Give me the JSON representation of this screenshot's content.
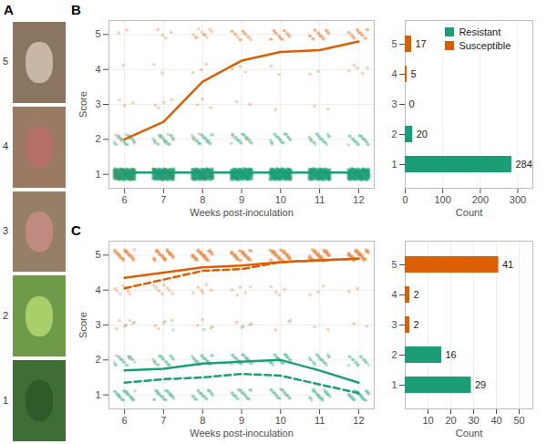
{
  "images": {
    "panel": "A",
    "labels": [
      5,
      4,
      3,
      2,
      1
    ]
  },
  "chart_data": [
    {
      "type": "line",
      "panel": "B",
      "xlabel": "Weeks post-inoculation",
      "ylabel": "Score",
      "x": [
        6,
        7,
        8,
        9,
        10,
        11,
        12
      ],
      "xlim": [
        5.6,
        12.4
      ],
      "xticks": [
        6,
        7,
        8,
        9,
        10,
        11,
        12
      ],
      "ylim": [
        0.6,
        5.4
      ],
      "yticks": [
        1,
        2,
        3,
        4,
        5
      ],
      "grid": true,
      "series": [
        {
          "name": "Susceptible",
          "color": "#d95f02",
          "line_style": "solid",
          "values": [
            2.0,
            2.5,
            3.65,
            4.25,
            4.5,
            4.55,
            4.8
          ]
        },
        {
          "name": "Resistant",
          "color": "#1b9e77",
          "line_style": "solid",
          "values": [
            1.05,
            1.05,
            1.05,
            1.05,
            1.05,
            1.05,
            1.05
          ]
        }
      ],
      "points": {
        "scores": [
          1,
          2,
          3,
          4,
          5
        ],
        "groups": [
          {
            "name": "Resistant",
            "counts": [
              [
                284,
                20,
                0,
                0,
                0
              ],
              [
                284,
                20,
                0,
                0,
                0
              ],
              [
                284,
                20,
                0,
                0,
                0
              ],
              [
                284,
                20,
                0,
                0,
                0
              ],
              [
                284,
                20,
                0,
                0,
                0
              ],
              [
                284,
                20,
                0,
                0,
                0
              ],
              [
                284,
                20,
                0,
                0,
                0
              ]
            ]
          },
          {
            "name": "Susceptible",
            "counts": [
              [
                10,
                6,
                3,
                1,
                2
              ],
              [
                7,
                5,
                4,
                2,
                4
              ],
              [
                3,
                3,
                3,
                3,
                10
              ],
              [
                1,
                2,
                2,
                3,
                14
              ],
              [
                1,
                1,
                1,
                2,
                17
              ],
              [
                0,
                1,
                2,
                2,
                17
              ],
              [
                0,
                0,
                0,
                5,
                17
              ]
            ]
          }
        ]
      }
    },
    {
      "type": "bar",
      "orientation": "horizontal",
      "xlabel": "Count",
      "categories": [
        5,
        4,
        3,
        2,
        1
      ],
      "xlim": [
        0,
        340
      ],
      "xticks": [
        0,
        100,
        200,
        300
      ],
      "grid": true,
      "data_labels": true,
      "legend": "top-right",
      "series": [
        {
          "name": "Resistant",
          "color": "#1b9e77",
          "values": [
            null,
            null,
            null,
            20,
            284
          ]
        },
        {
          "name": "Susceptible",
          "color": "#d95f02",
          "values": [
            17,
            5,
            0,
            null,
            null
          ]
        }
      ]
    },
    {
      "type": "line",
      "panel": "C",
      "xlabel": "Weeks post-inoculation",
      "ylabel": "Score",
      "x": [
        6,
        7,
        8,
        9,
        10,
        11,
        12
      ],
      "xlim": [
        5.6,
        12.4
      ],
      "xticks": [
        6,
        7,
        8,
        9,
        10,
        11,
        12
      ],
      "ylim": [
        0.6,
        5.4
      ],
      "yticks": [
        1,
        2,
        3,
        4,
        5
      ],
      "grid": true,
      "series": [
        {
          "name": "Susceptible",
          "color": "#d95f02",
          "line_style": "solid",
          "values": [
            4.35,
            4.5,
            4.65,
            4.7,
            4.8,
            4.85,
            4.9
          ]
        },
        {
          "name": "Susceptible",
          "color": "#d95f02",
          "line_style": "dashed",
          "values": [
            4.05,
            4.3,
            4.55,
            4.6,
            4.8,
            4.85,
            4.9
          ]
        },
        {
          "name": "Resistant",
          "color": "#1b9e77",
          "line_style": "solid",
          "values": [
            1.7,
            1.75,
            1.9,
            1.95,
            2.0,
            1.7,
            1.35
          ]
        },
        {
          "name": "Resistant",
          "color": "#1b9e77",
          "line_style": "dashed",
          "values": [
            1.35,
            1.45,
            1.5,
            1.6,
            1.55,
            1.3,
            1.05
          ]
        }
      ],
      "points": {
        "scores": [
          1,
          2,
          3,
          4,
          5
        ],
        "groups": [
          {
            "name": "Resistant",
            "counts": [
              [
                25,
                18,
                2,
                0,
                0
              ],
              [
                24,
                19,
                2,
                0,
                0
              ],
              [
                21,
                22,
                2,
                0,
                0
              ],
              [
                20,
                23,
                2,
                0,
                0
              ],
              [
                20,
                24,
                1,
                0,
                0
              ],
              [
                25,
                20,
                0,
                0,
                0
              ],
              [
                29,
                16,
                0,
                0,
                0
              ]
            ]
          },
          {
            "name": "Susceptible",
            "counts": [
              [
                0,
                2,
                5,
                8,
                30
              ],
              [
                0,
                1,
                4,
                8,
                32
              ],
              [
                0,
                0,
                3,
                6,
                36
              ],
              [
                0,
                0,
                3,
                5,
                37
              ],
              [
                0,
                0,
                2,
                4,
                39
              ],
              [
                0,
                0,
                2,
                3,
                40
              ],
              [
                0,
                0,
                2,
                2,
                41
              ]
            ]
          }
        ]
      }
    },
    {
      "type": "bar",
      "orientation": "horizontal",
      "xlabel": "Count",
      "categories": [
        5,
        4,
        3,
        2,
        1
      ],
      "xlim": [
        0,
        56
      ],
      "xticks": [
        10,
        20,
        30,
        40,
        50
      ],
      "grid": true,
      "data_labels": true,
      "series": [
        {
          "name": "Resistant",
          "color": "#1b9e77",
          "values": [
            null,
            null,
            null,
            16,
            29
          ]
        },
        {
          "name": "Susceptible",
          "color": "#d95f02",
          "values": [
            41,
            2,
            2,
            null,
            null
          ]
        }
      ]
    }
  ]
}
